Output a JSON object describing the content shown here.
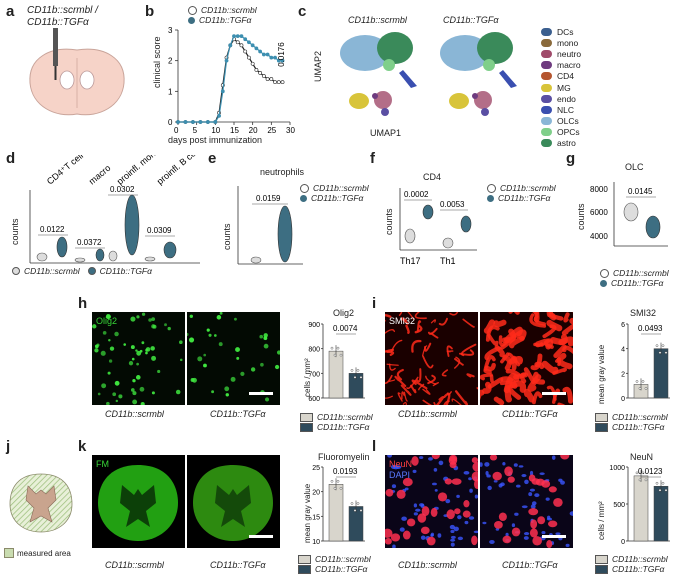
{
  "panels": {
    "a": {
      "label": "a",
      "title_line1": "CD11b::scrmbl /",
      "title_line2": "CD11b::TGFα"
    },
    "b": {
      "label": "b",
      "legend": [
        "CD11b::scrmbl",
        "CD11b::TGFα"
      ],
      "ylabel": "clinical score",
      "xlabel": "days post immunization",
      "pval": "0.0176",
      "xticks": [
        "0",
        "5",
        "10",
        "15",
        "20",
        "25",
        "30"
      ],
      "yticks": [
        "0",
        "1",
        "2",
        "3"
      ]
    },
    "c": {
      "label": "c",
      "titles": [
        "CD11b::scrmbl",
        "CD11b::TGFα"
      ],
      "xlabel": "UMAP1",
      "ylabel": "UMAP2",
      "clusters": [
        {
          "name": "DCs",
          "color": "#3b5f8f"
        },
        {
          "name": "mono",
          "color": "#8a6a3b"
        },
        {
          "name": "neutro",
          "color": "#a04a6a"
        },
        {
          "name": "macro",
          "color": "#6e3b7f"
        },
        {
          "name": "CD4",
          "color": "#b5552e"
        },
        {
          "name": "MG",
          "color": "#d8c43a"
        },
        {
          "name": "endo",
          "color": "#5a4fa3"
        },
        {
          "name": "NLC",
          "color": "#3a4fb0"
        },
        {
          "name": "OLCs",
          "color": "#8ab6d6"
        },
        {
          "name": "OPCs",
          "color": "#7fcf8a"
        },
        {
          "name": "astro",
          "color": "#3a8a5a"
        }
      ]
    },
    "d": {
      "label": "d",
      "ylabel": "counts",
      "groups": [
        "CD4⁺T cell",
        "macro",
        "proinfl. mono",
        "proinfl. B cell"
      ],
      "pvals": [
        "0.0122",
        "0.0372",
        "0.0302",
        "0.0309"
      ],
      "legend": [
        "CD11b::scrmbl",
        "CD11b::TGFα"
      ]
    },
    "e": {
      "label": "e",
      "title": "neutrophils",
      "ylabel": "counts",
      "pval": "0.0159",
      "legend": [
        "CD11b::scrmbl",
        "CD11b::TGFα"
      ]
    },
    "f": {
      "label": "f",
      "title": "CD4",
      "ylabel": "counts",
      "groups": [
        "Th17",
        "Th1"
      ],
      "pvals": [
        "0.0002",
        "0.0053"
      ],
      "legend": [
        "CD11b::scrmbl",
        "CD11b::TGFα"
      ]
    },
    "g": {
      "label": "g",
      "title": "OLC",
      "ylabel": "counts",
      "yticks": [
        "4000",
        "6000",
        "8000"
      ],
      "pval": "0.0145",
      "legend": [
        "CD11b::scrmbl",
        "CD11b::TGFα"
      ]
    },
    "h": {
      "label": "h",
      "stain": "Olig2",
      "captions": [
        "CD11b::scrmbl",
        "CD11b::TGFα"
      ],
      "bar_title": "Olig2",
      "ylabel": "cells / mm²",
      "yticks": [
        "600",
        "700",
        "800",
        "900"
      ],
      "pval": "0.0074",
      "legend": [
        "CD11b::scrmbl",
        "CD11b::TGFα"
      ]
    },
    "i": {
      "label": "i",
      "stain": "SMI32",
      "captions": [
        "CD11b::scrmbl",
        "CD11b::TGFα"
      ],
      "bar_title": "SMI32",
      "ylabel": "mean gray value",
      "yticks": [
        "0",
        "2",
        "4",
        "6"
      ],
      "pval": "0.0493",
      "legend": [
        "CD11b::scrmbl",
        "CD11b::TGFα"
      ]
    },
    "j": {
      "label": "j",
      "legend": "measured area"
    },
    "k": {
      "label": "k",
      "stain": "FM",
      "captions": [
        "CD11b::scrmbl",
        "CD11b::TGFα"
      ],
      "bar_title": "Fluoromyelin",
      "ylabel": "mean gray value",
      "yticks": [
        "10",
        "15",
        "20",
        "25"
      ],
      "pval": "0.0193",
      "legend": [
        "CD11b::scrmbl",
        "CD11b::TGFα"
      ]
    },
    "l": {
      "label": "l",
      "stain1": "NeuN",
      "stain2": "DAPI",
      "captions": [
        "CD11b::scrmbl",
        "CD11b::TGFα"
      ],
      "bar_title": "NeuN",
      "ylabel": "cells / mm²",
      "yticks": [
        "0",
        "500",
        "1000"
      ],
      "pval": "0.0123",
      "legend": [
        "CD11b::scrmbl",
        "CD11b::TGFα"
      ]
    }
  },
  "chart_data": [
    {
      "type": "line",
      "panel": "b",
      "x": [
        0,
        2,
        4,
        6,
        8,
        10,
        11,
        12,
        13,
        14,
        15,
        16,
        17,
        18,
        19,
        20,
        21,
        22,
        23,
        24,
        25,
        26,
        27,
        28
      ],
      "series": [
        {
          "name": "CD11b::scrmbl",
          "values": [
            0,
            0,
            0,
            0,
            0,
            0,
            0.3,
            1.2,
            2.1,
            2.5,
            2.7,
            2.6,
            2.5,
            2.3,
            2.1,
            1.9,
            1.7,
            1.6,
            1.5,
            1.4,
            1.4,
            1.3,
            1.3,
            1.3
          ]
        },
        {
          "name": "CD11b::TGFα",
          "values": [
            0,
            0,
            0,
            0,
            0,
            0,
            0.2,
            1.0,
            2.0,
            2.5,
            2.8,
            2.8,
            2.8,
            2.7,
            2.6,
            2.5,
            2.4,
            2.3,
            2.2,
            2.2,
            2.1,
            2.1,
            2.0,
            2.0
          ]
        }
      ],
      "ylim": [
        0,
        3
      ],
      "xlim": [
        0,
        30
      ]
    },
    {
      "type": "bar",
      "panel": "h",
      "categories": [
        "CD11b::scrmbl",
        "CD11b::TGFα"
      ],
      "values": [
        790,
        700
      ],
      "ylim": [
        600,
        900
      ]
    },
    {
      "type": "bar",
      "panel": "i",
      "categories": [
        "CD11b::scrmbl",
        "CD11b::TGFα"
      ],
      "values": [
        1.1,
        4.0
      ],
      "ylim": [
        0,
        6
      ]
    },
    {
      "type": "bar",
      "panel": "k",
      "categories": [
        "CD11b::scrmbl",
        "CD11b::TGFα"
      ],
      "values": [
        21.5,
        17.0
      ],
      "ylim": [
        10,
        25
      ]
    },
    {
      "type": "bar",
      "panel": "l",
      "categories": [
        "CD11b::scrmbl",
        "CD11b::TGFα"
      ],
      "values": [
        880,
        740
      ],
      "ylim": [
        0,
        1000
      ]
    }
  ]
}
